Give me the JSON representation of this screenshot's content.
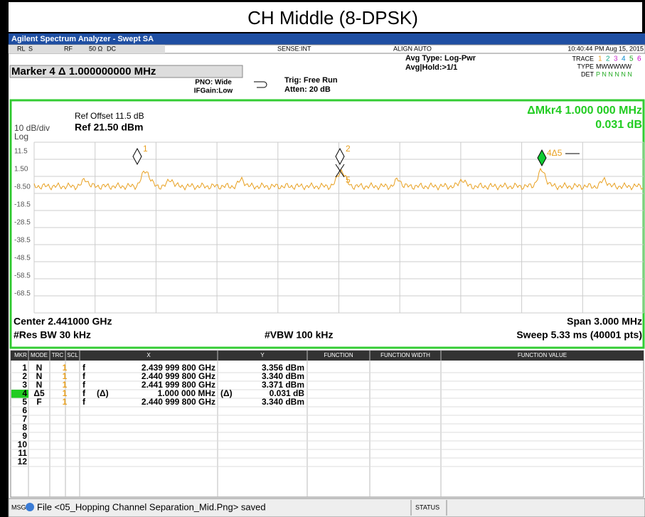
{
  "caption": "CH Middle (8-DPSK)",
  "window_title": "Agilent Spectrum Analyzer - Swept SA",
  "status_bar": {
    "left": [
      "RL",
      "S",
      "RF",
      "50 Ω",
      "DC"
    ],
    "sense": "SENSE:INT",
    "align": "ALIGN AUTO",
    "time": "10:40:44 PM Aug 15, 2015"
  },
  "header": {
    "marker": "Marker 4 Δ 1.000000000 MHz",
    "pno": "PNO: Wide",
    "ifgain": "IFGain:Low",
    "trig": "Trig: Free Run",
    "atten": "Atten: 20 dB",
    "avg_type": "Avg Type: Log-Pwr",
    "avg_hold": "Avg|Hold:>1/1",
    "trace_label": "TRACE",
    "trace_nums": [
      "1",
      "2",
      "3",
      "4",
      "5",
      "6"
    ],
    "type_label": "TYPE",
    "type_value": "MWWWWW",
    "det_label": "DET",
    "det_value": "P N N N N N"
  },
  "plot": {
    "ref_offset": "Ref Offset 11.5 dB",
    "scale": "10 dB/div",
    "ref_level": "Ref 21.50 dBm",
    "scale_type": "Log",
    "marker_readout": "ΔMkr4 1.000 000 MHz",
    "marker_value": "0.031 dB",
    "y_labels": [
      "11.5",
      "1.50",
      "-8.50",
      "-18.5",
      "-28.5",
      "-38.5",
      "-48.5",
      "-58.5",
      "-68.5"
    ],
    "markers": [
      "1",
      "2",
      "5",
      "4Δ5"
    ],
    "center": "Center 2.441000 GHz",
    "span": "Span 3.000 MHz",
    "res_bw": "#Res BW 30 kHz",
    "vbw": "#VBW 100 kHz",
    "sweep": "Sweep  5.33 ms (40001 pts)"
  },
  "table": {
    "columns": [
      "MKR",
      "MODE",
      "TRC",
      "SCL",
      "X",
      "Y",
      "FUNCTION",
      "FUNCTION WIDTH",
      "FUNCTION VALUE"
    ],
    "rows": [
      {
        "mkr": "1",
        "mode": "N",
        "trc": "1",
        "scl": "f",
        "x": "2.439 999 800 GHz",
        "y": "3.356 dBm"
      },
      {
        "mkr": "2",
        "mode": "N",
        "trc": "1",
        "scl": "f",
        "x": "2.440 999 800 GHz",
        "y": "3.340 dBm"
      },
      {
        "mkr": "3",
        "mode": "N",
        "trc": "1",
        "scl": "f",
        "x": "2.441 999 800 GHz",
        "y": "3.371 dBm"
      },
      {
        "mkr": "4",
        "mode": "Δ5",
        "trc": "1",
        "scl": "f",
        "x_prefix": "(Δ)",
        "x": "1.000 000 MHz",
        "y_prefix": "(Δ)",
        "y": "0.031 dB"
      },
      {
        "mkr": "5",
        "mode": "F",
        "trc": "1",
        "scl": "f",
        "x": "2.440 999 800 GHz",
        "y": "3.340 dBm"
      },
      {
        "mkr": "6"
      },
      {
        "mkr": "7"
      },
      {
        "mkr": "8"
      },
      {
        "mkr": "9"
      },
      {
        "mkr": "10"
      },
      {
        "mkr": "11"
      },
      {
        "mkr": "12"
      }
    ]
  },
  "footer": {
    "msg": "MSG",
    "message": "File <05_Hopping Channel Separation_Mid.Png> saved",
    "status": "STATUS"
  }
}
